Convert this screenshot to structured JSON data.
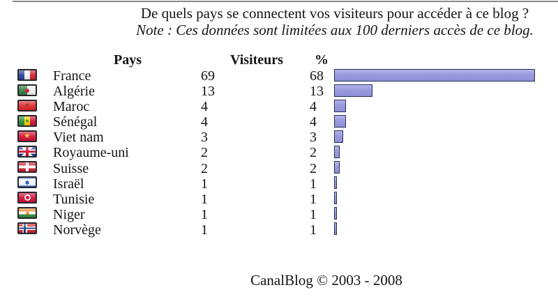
{
  "page": {
    "title": "De quels pays se connectent vos visiteurs pour accéder à ce blog ?",
    "note": "Note : Ces données sont limitées aux 100 derniers accès de ce blog.",
    "footer": "CanalBlog © 2003 - 2008"
  },
  "table": {
    "headers": {
      "country": "Pays",
      "visitors": "Visiteurs",
      "percent": "%"
    },
    "rows": [
      {
        "flag": "france-flag-icon",
        "flag_class": "fr",
        "country": "France",
        "visitors": 69,
        "percent": 68
      },
      {
        "flag": "algeria-flag-icon",
        "flag_class": "dz",
        "country": "Algérie",
        "visitors": 13,
        "percent": 13
      },
      {
        "flag": "morocco-flag-icon",
        "flag_class": "ma",
        "country": "Maroc",
        "visitors": 4,
        "percent": 4
      },
      {
        "flag": "senegal-flag-icon",
        "flag_class": "sn",
        "country": "Sénégal",
        "visitors": 4,
        "percent": 4
      },
      {
        "flag": "vietnam-flag-icon",
        "flag_class": "vn",
        "country": "Viet nam",
        "visitors": 3,
        "percent": 3
      },
      {
        "flag": "united-kingdom-flag-icon",
        "flag_class": "gb",
        "country": "Royaume-uni",
        "visitors": 2,
        "percent": 2
      },
      {
        "flag": "switzerland-flag-icon",
        "flag_class": "ch",
        "country": "Suisse",
        "visitors": 2,
        "percent": 2
      },
      {
        "flag": "israel-flag-icon",
        "flag_class": "il",
        "country": "Israël",
        "visitors": 1,
        "percent": 1
      },
      {
        "flag": "tunisia-flag-icon",
        "flag_class": "tn",
        "country": "Tunisie",
        "visitors": 1,
        "percent": 1
      },
      {
        "flag": "niger-flag-icon",
        "flag_class": "ne",
        "country": "Niger",
        "visitors": 1,
        "percent": 1
      },
      {
        "flag": "norway-flag-icon",
        "flag_class": "no",
        "country": "Norvège",
        "visitors": 1,
        "percent": 1
      }
    ]
  },
  "chart_data": {
    "type": "bar",
    "orientation": "horizontal",
    "title": "De quels pays se connectent vos visiteurs pour accéder à ce blog ?",
    "subtitle": "Note : Ces données sont limitées aux 100 derniers accès de ce blog.",
    "categories": [
      "France",
      "Algérie",
      "Maroc",
      "Sénégal",
      "Viet nam",
      "Royaume-uni",
      "Suisse",
      "Israël",
      "Tunisie",
      "Niger",
      "Norvège"
    ],
    "series": [
      {
        "name": "Visiteurs",
        "values": [
          69,
          13,
          4,
          4,
          3,
          2,
          2,
          1,
          1,
          1,
          1
        ]
      },
      {
        "name": "%",
        "values": [
          68,
          13,
          4,
          4,
          3,
          2,
          2,
          1,
          1,
          1,
          1
        ]
      }
    ],
    "bars_depict": "%",
    "xlim": [
      0,
      68
    ],
    "grid": false,
    "legend": false,
    "bar_color": "#9a9ade",
    "bar_border_color": "#233055",
    "rule_color": "#8a8a8a"
  }
}
